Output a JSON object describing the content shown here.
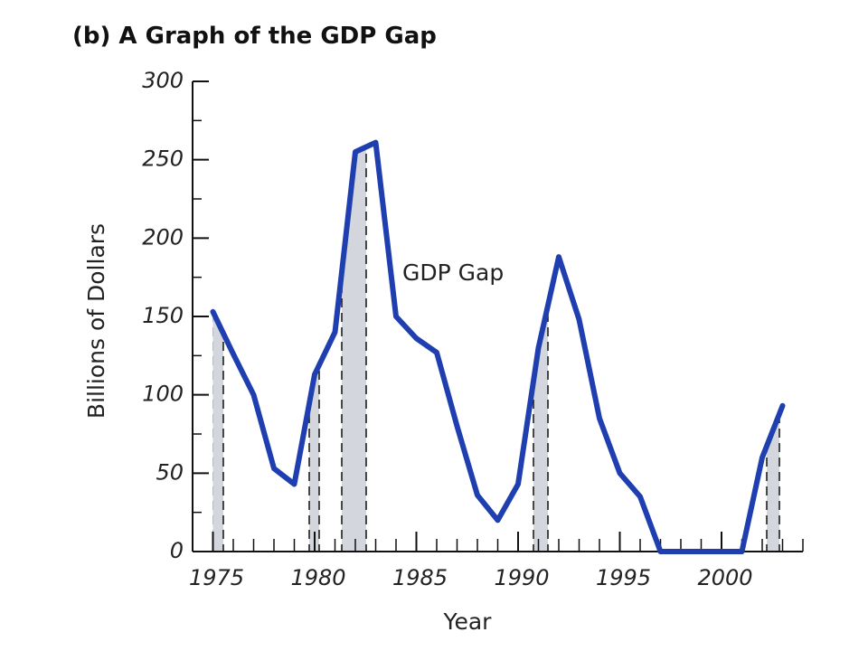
{
  "chart_data": {
    "type": "line",
    "title": "(b) A Graph of the GDP Gap",
    "x_label": "Year",
    "y_label": "Billions of Dollars",
    "annotation": "GDP Gap",
    "x": [
      1975,
      1976,
      1977,
      1978,
      1979,
      1980,
      1981,
      1982,
      1983,
      1984,
      1985,
      1986,
      1987,
      1988,
      1989,
      1990,
      1991,
      1992,
      1993,
      1994,
      1995,
      1996,
      1997,
      1998,
      1999,
      2000,
      2001,
      2002,
      2003
    ],
    "series": [
      {
        "name": "GDP Gap",
        "color": "#1f3fb0",
        "values": [
          153,
          126,
          100,
          53,
          43,
          113,
          140,
          255,
          261,
          150,
          136,
          127,
          80,
          36,
          20,
          43,
          130,
          188,
          148,
          85,
          50,
          35,
          0,
          0,
          0,
          0,
          0,
          60,
          93
        ]
      }
    ],
    "xlim": [
      1974,
      2004
    ],
    "xticks": [
      1975,
      1980,
      1985,
      1990,
      1995,
      2000
    ],
    "ylim": [
      0,
      300
    ],
    "yticks": [
      0,
      50,
      100,
      150,
      200,
      250,
      300
    ]
  }
}
